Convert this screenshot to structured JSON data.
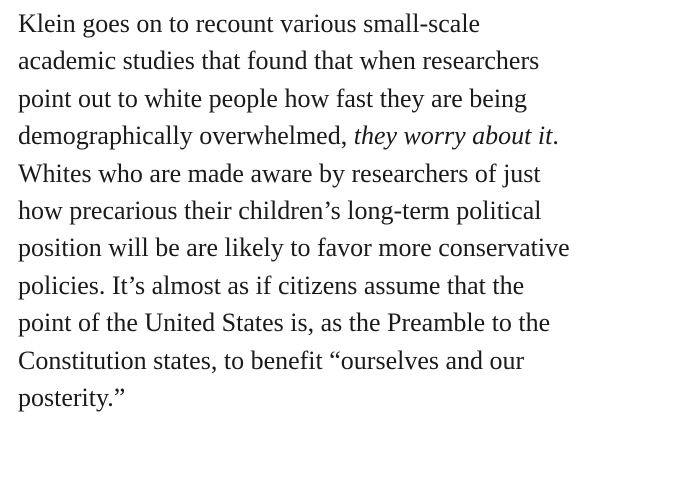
{
  "article": {
    "paragraph": {
      "lines": [
        "Klein goes on to recount various small-scale",
        "academic studies that found that when researchers",
        "point out to white people how fast they are being",
        {
          "before": "demographically overwhelmed, ",
          "emphasis": "they worry about it",
          "after": "."
        },
        "Whites who are made aware by researchers of just",
        "how precarious their children’s long-term political",
        "position will be are likely to favor more conservative",
        "policies. It’s almost as if citizens assume that the",
        "point of the United States is, as the Preamble to the",
        "Constitution states, to benefit “ourselves and our",
        "posterity.”"
      ]
    }
  }
}
